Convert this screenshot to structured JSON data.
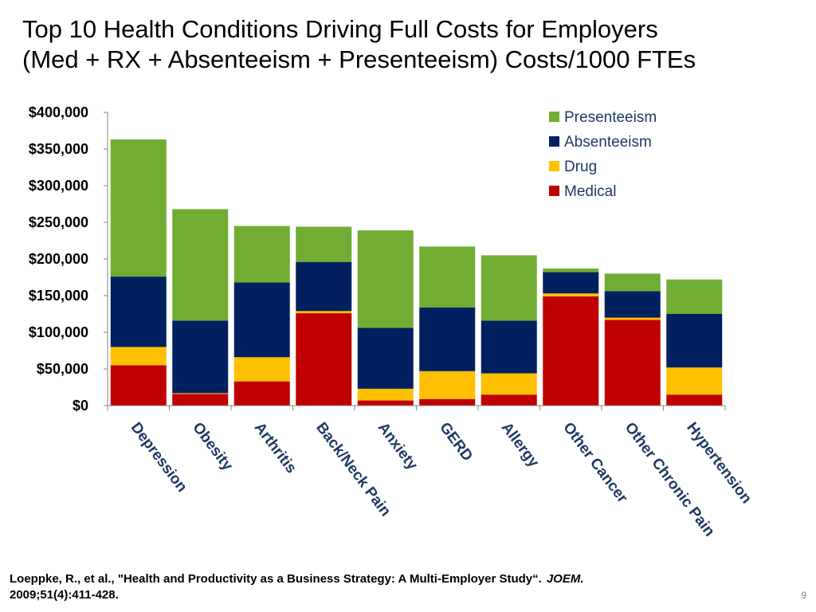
{
  "title": {
    "line1": "Top 10 Health Conditions Driving Full Costs for Employers",
    "line2": "(Med + RX + Absenteeism + Presenteeism) Costs/1000 FTEs"
  },
  "chart_data": {
    "type": "bar",
    "stacked": true,
    "categories": [
      "Depression",
      "Obesity",
      "Arthritis",
      "Back/Neck Pain",
      "Anxiety",
      "GERD",
      "Allergy",
      "Other Cancer",
      "Other Chronic Pain",
      "Hypertension"
    ],
    "series": [
      {
        "name": "Medical",
        "color": "#C00000",
        "values": [
          55000,
          16000,
          33000,
          126000,
          7000,
          9000,
          15000,
          149000,
          117000,
          15000
        ]
      },
      {
        "name": "Drug",
        "color": "#FFC000",
        "values": [
          25000,
          1000,
          33000,
          3000,
          16000,
          38000,
          29000,
          4000,
          3000,
          37000
        ]
      },
      {
        "name": "Absenteeism",
        "color": "#002060",
        "values": [
          96000,
          99000,
          102000,
          67000,
          83000,
          87000,
          72000,
          29000,
          36000,
          73000
        ]
      },
      {
        "name": "Presenteeism",
        "color": "#70AD32",
        "values": [
          187000,
          152000,
          77000,
          48000,
          133000,
          83000,
          89000,
          5000,
          24000,
          47000
        ]
      }
    ],
    "legend_order": [
      "Presenteeism",
      "Absenteeism",
      "Drug",
      "Medical"
    ],
    "legend_position": "top-right",
    "yticks": [
      "$0",
      "$50,000",
      "$100,000",
      "$150,000",
      "$200,000",
      "$250,000",
      "$300,000",
      "$350,000",
      "$400,000"
    ],
    "ylim": [
      0,
      400000
    ],
    "title": "",
    "xlabel": "",
    "ylabel": ""
  },
  "citation": {
    "text": "Loeppke, R., et al., \"Health and Productivity as a Business Strategy: A Multi-Employer Study“.",
    "journal": "JOEM.",
    "details": "2009;51(4):411-428."
  },
  "page_number": "9"
}
